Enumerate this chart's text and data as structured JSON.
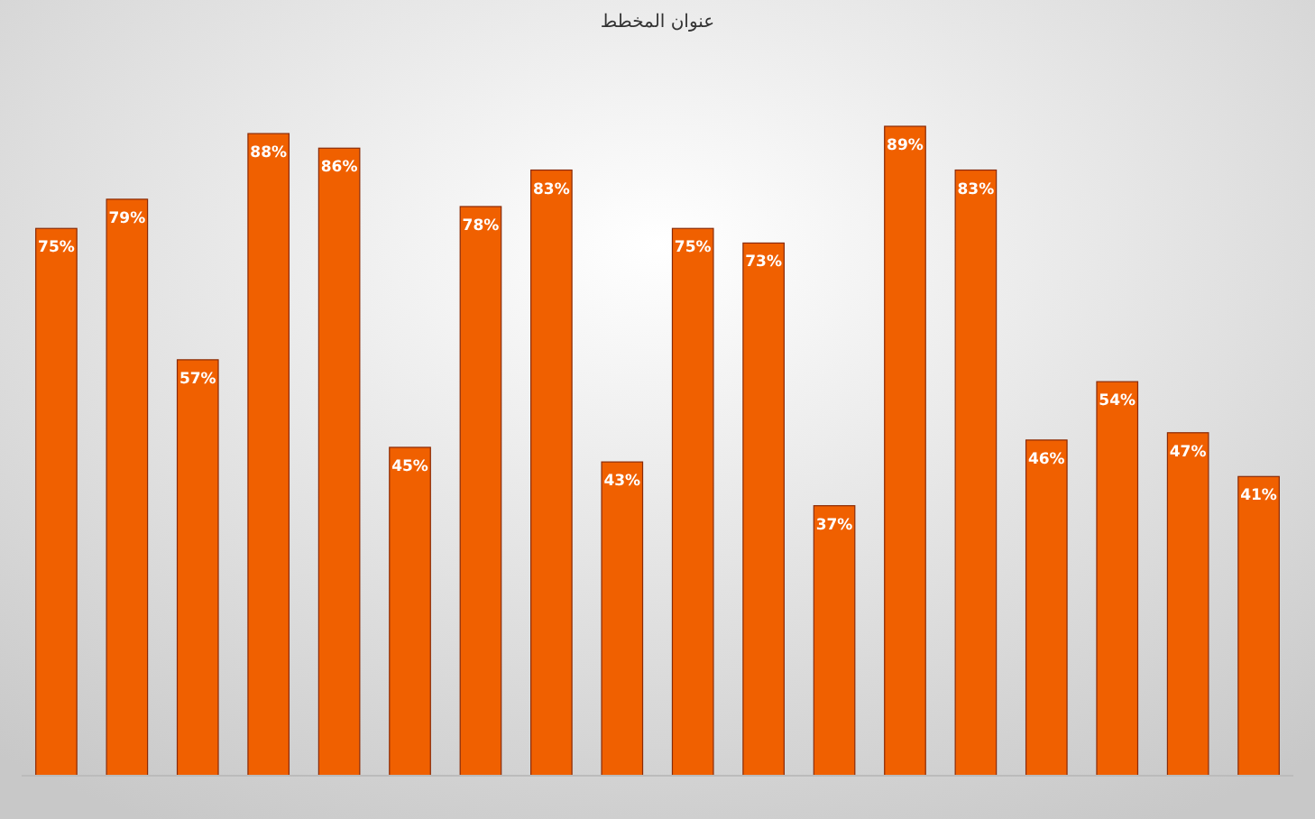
{
  "chart_data": {
    "type": "bar",
    "title": "عنوان المخطط",
    "categories": [
      null,
      null,
      null,
      null,
      null,
      null,
      null,
      null,
      null,
      null,
      null,
      null,
      null,
      null,
      null,
      null,
      null,
      null
    ],
    "values": [
      75,
      79,
      57,
      88,
      86,
      45,
      78,
      83,
      43,
      75,
      73,
      37,
      89,
      83,
      46,
      54,
      47,
      41
    ],
    "value_labels": [
      "75%",
      "79%",
      "57%",
      "88%",
      "86%",
      "45%",
      "78%",
      "83%",
      "43%",
      "75%",
      "73%",
      "37%",
      "89%",
      "83%",
      "46%",
      "54%",
      "47%",
      "41%"
    ],
    "color": "#f06000"
  }
}
